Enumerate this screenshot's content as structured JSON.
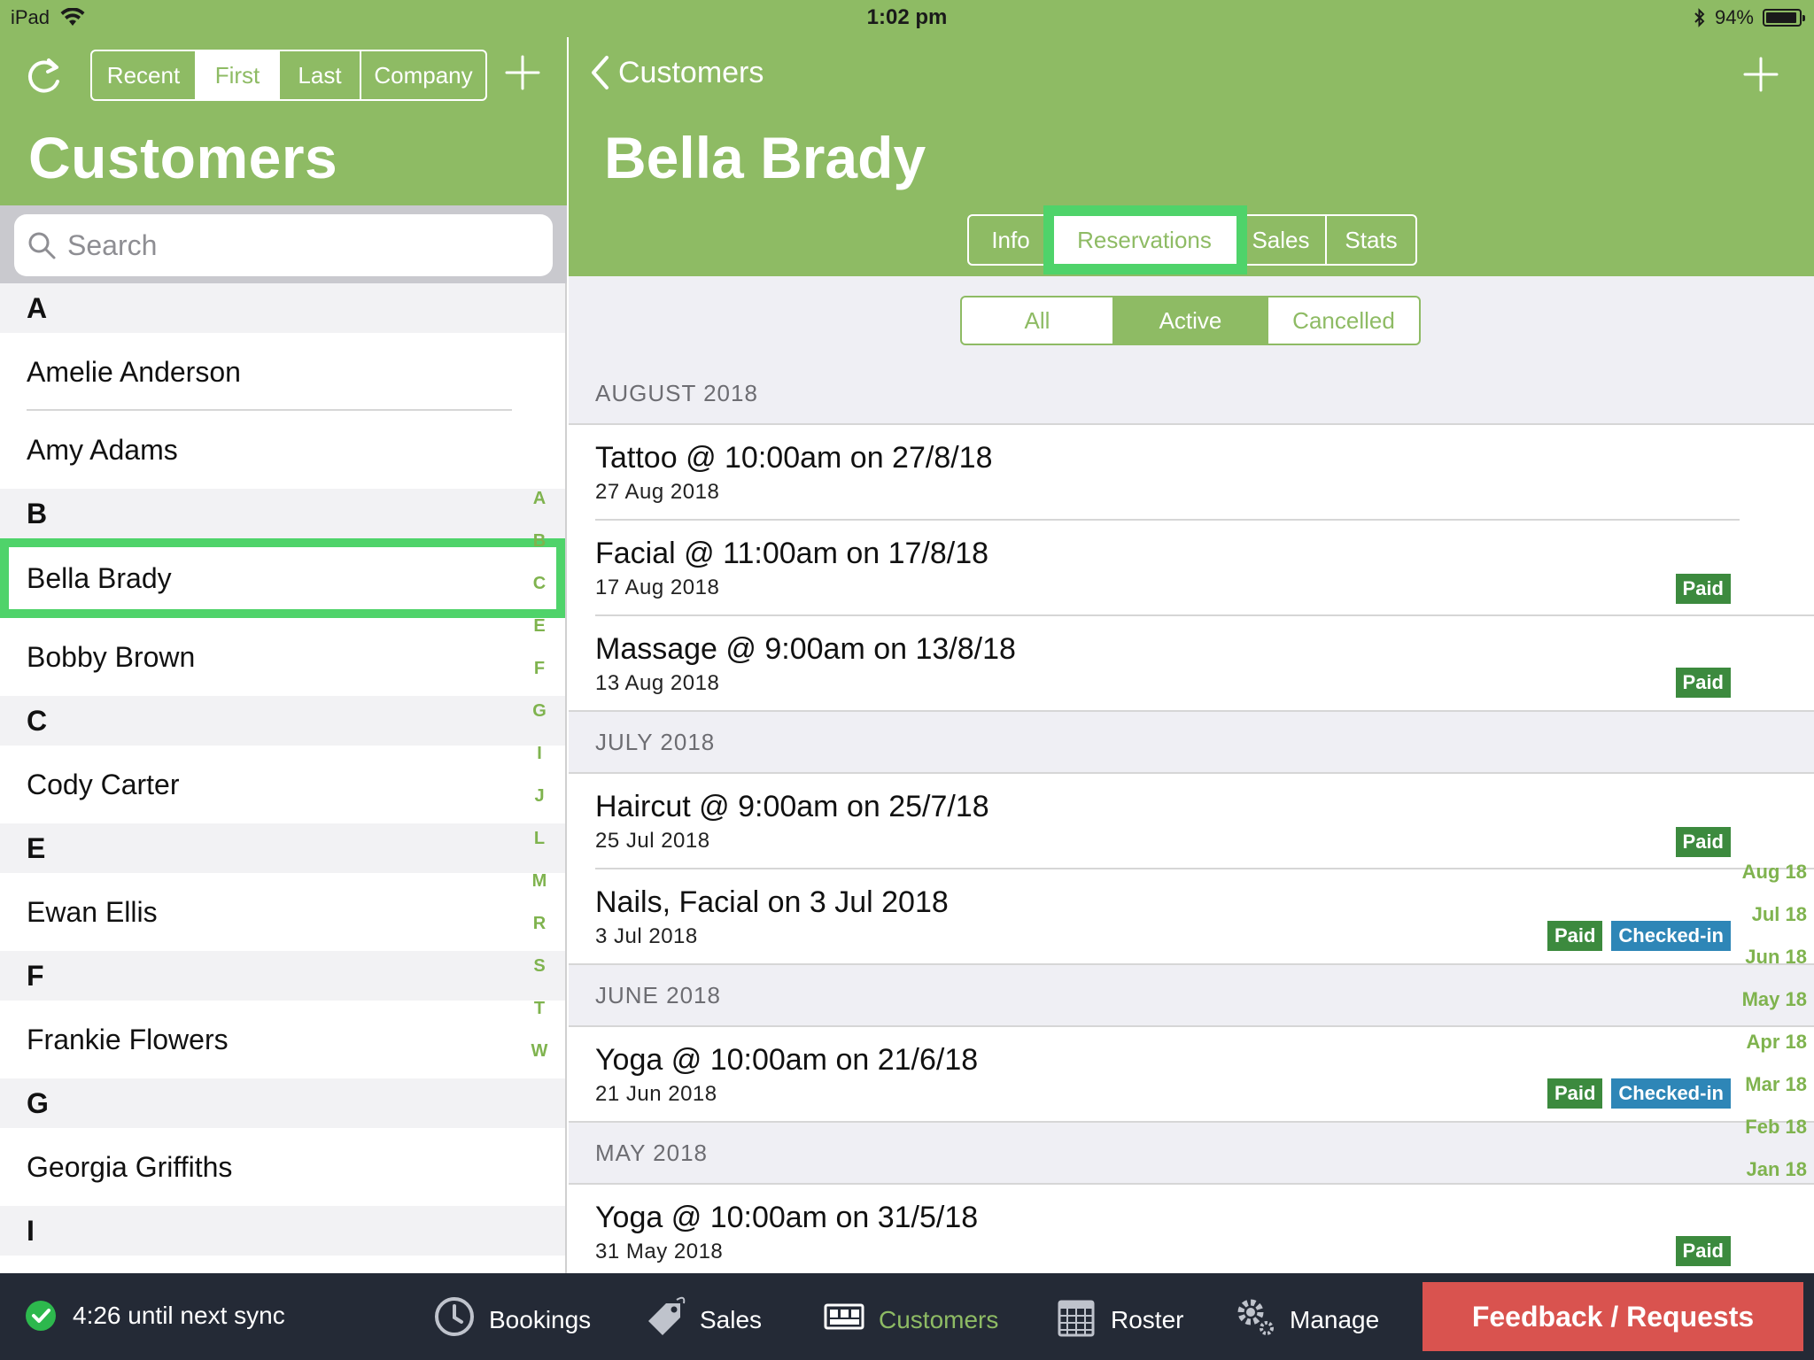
{
  "status_bar": {
    "device": "iPad",
    "time": "1:02 pm",
    "battery": "94%",
    "battery_level": 0.94
  },
  "left_panel": {
    "sort_options": [
      "Recent",
      "First",
      "Last",
      "Company"
    ],
    "sort_selected": "First",
    "title": "Customers",
    "search_placeholder": "Search",
    "sections": [
      {
        "letter": "A",
        "customers": [
          "Amelie Anderson",
          "Amy Adams"
        ]
      },
      {
        "letter": "B",
        "customers": [
          "Bella Brady",
          "Bobby Brown"
        ]
      },
      {
        "letter": "C",
        "customers": [
          "Cody  Carter"
        ]
      },
      {
        "letter": "E",
        "customers": [
          "Ewan Ellis"
        ]
      },
      {
        "letter": "F",
        "customers": [
          "Frankie Flowers"
        ]
      },
      {
        "letter": "G",
        "customers": [
          "Georgia Griffiths"
        ]
      },
      {
        "letter": "I",
        "customers": []
      }
    ],
    "selected_customer": "Bella Brady",
    "index_letters": [
      "A",
      "B",
      "C",
      "E",
      "F",
      "G",
      "I",
      "J",
      "L",
      "M",
      "R",
      "S",
      "T",
      "W"
    ]
  },
  "detail": {
    "back_label": "Customers",
    "title": "Bella Brady",
    "tabs": [
      "Info",
      "Reservations",
      "Sales",
      "Stats"
    ],
    "tab_selected": "Reservations",
    "filters": [
      "All",
      "Active",
      "Cancelled"
    ],
    "filter_selected": "Active",
    "months": [
      {
        "label": "AUGUST 2018",
        "items": [
          {
            "title": "Tattoo @ 10:00am on 27/8/18",
            "date": "27 Aug 2018",
            "badges": []
          },
          {
            "title": "Facial @ 11:00am on 17/8/18",
            "date": "17 Aug 2018",
            "badges": [
              "Paid"
            ]
          },
          {
            "title": "Massage @ 9:00am on 13/8/18",
            "date": "13 Aug 2018",
            "badges": [
              "Paid"
            ]
          }
        ]
      },
      {
        "label": "JULY 2018",
        "items": [
          {
            "title": "Haircut @ 9:00am on 25/7/18",
            "date": "25 Jul 2018",
            "badges": [
              "Paid"
            ]
          },
          {
            "title": "Nails, Facial on 3 Jul 2018",
            "date": "3 Jul 2018",
            "badges": [
              "Paid",
              "Checked-in"
            ]
          }
        ]
      },
      {
        "label": "JUNE 2018",
        "items": [
          {
            "title": "Yoga @ 10:00am on 21/6/18",
            "date": "21 Jun 2018",
            "badges": [
              "Paid",
              "Checked-in"
            ]
          }
        ]
      },
      {
        "label": "MAY 2018",
        "items": [
          {
            "title": "Yoga @ 10:00am on 31/5/18",
            "date": "31 May 2018",
            "badges": [
              "Paid"
            ]
          }
        ]
      }
    ],
    "month_index": [
      "Aug 18",
      "Jul 18",
      "Jun 18",
      "May 18",
      "Apr 18",
      "Mar 18",
      "Feb 18",
      "Jan 18"
    ]
  },
  "bottom_bar": {
    "sync_text": "4:26 until next sync",
    "nav": [
      {
        "label": "Bookings",
        "icon": "clock-icon"
      },
      {
        "label": "Sales",
        "icon": "tag-icon"
      },
      {
        "label": "Customers",
        "icon": "customers-icon"
      },
      {
        "label": "Roster",
        "icon": "calendar-icon"
      },
      {
        "label": "Manage",
        "icon": "gear-icon"
      }
    ],
    "nav_selected": "Customers",
    "feedback_label": "Feedback / Requests"
  },
  "colors": {
    "brand_green": "#8ebb64",
    "highlight_green": "#4fd36a",
    "paid_badge": "#3c8a3e",
    "checked_in_badge": "#2e86b7",
    "feedback_red": "#d9534f",
    "bottom_bar": "#242a36"
  }
}
